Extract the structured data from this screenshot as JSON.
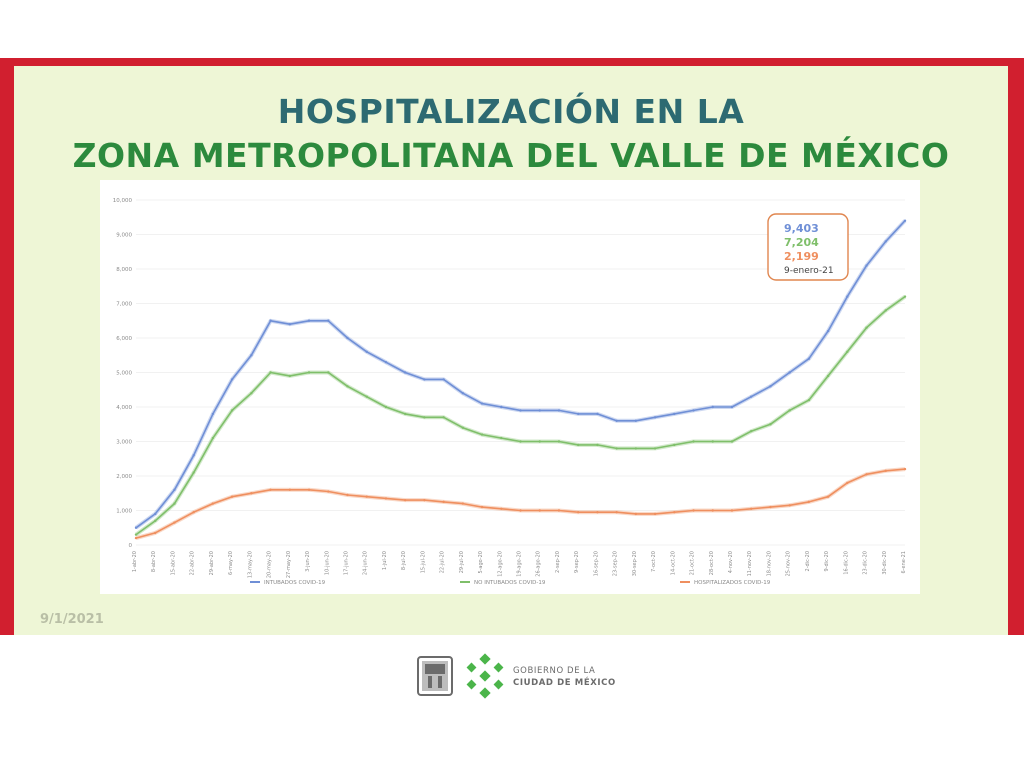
{
  "title": {
    "line1": "HOSPITALIZACIÓN EN LA",
    "line2": "ZONA METROPOLITANA DEL VALLE DE MÉXICO"
  },
  "date": "9/1/2021",
  "org": {
    "line1": "GOBIERNO DE LA",
    "line2": "CIUDAD DE MÉXICO"
  },
  "colors": {
    "frame": "#d11f2f",
    "panel": "#eef6d6",
    "title_top": "#2d6a72",
    "title_bottom": "#2c8a3d",
    "intubados": "#6f8fd6",
    "no_intubados": "#7fbf6a",
    "hospitalizados": "#ef8f5f"
  },
  "chart_data": {
    "type": "line",
    "ylim": [
      0,
      10000
    ],
    "y_ticks": [
      "0",
      "1,000",
      "2,000",
      "3,000",
      "4,000",
      "5,000",
      "6,000",
      "7,000",
      "8,000",
      "9,000",
      "10,000"
    ],
    "x_tick_labels": [
      "1-abr-20",
      "8-abr-20",
      "15-abr-20",
      "22-abr-20",
      "29-abr-20",
      "6-may-20",
      "13-may-20",
      "20-may-20",
      "27-may-20",
      "3-jun-20",
      "10-jun-20",
      "17-jun-20",
      "24-jun-20",
      "1-jul-20",
      "8-jul-20",
      "15-jul-20",
      "22-jul-20",
      "29-jul-20",
      "5-ago-20",
      "12-ago-20",
      "19-ago-20",
      "26-ago-20",
      "2-sep-20",
      "9-sep-20",
      "16-sep-20",
      "23-sep-20",
      "30-sep-20",
      "7-oct-20",
      "14-oct-20",
      "21-oct-20",
      "28-oct-20",
      "4-nov-20",
      "11-nov-20",
      "18-nov-20",
      "25-nov-20",
      "2-dic-20",
      "9-dic-20",
      "16-dic-20",
      "23-dic-20",
      "30-dic-20",
      "6-ene-21"
    ],
    "legend": [
      "INTUBADOS COVID-19",
      "NO INTUBADOS COVID-19",
      "HOSPITALIZADOS COVID-19"
    ],
    "series": [
      {
        "name": "HOSPITALIZADOS COVID-19",
        "color_key": "intubados",
        "values": [
          500,
          900,
          1600,
          2600,
          3800,
          4800,
          5500,
          6500,
          6400,
          6500,
          6500,
          6000,
          5600,
          5300,
          5000,
          4800,
          4800,
          4400,
          4100,
          4000,
          3900,
          3900,
          3900,
          3800,
          3800,
          3600,
          3600,
          3700,
          3800,
          3900,
          4000,
          4000,
          4300,
          4600,
          5000,
          5400,
          6200,
          7200,
          8100,
          8800,
          9400
        ]
      },
      {
        "name": "NO INTUBADOS COVID-19",
        "color_key": "no_intubados",
        "values": [
          300,
          700,
          1200,
          2100,
          3100,
          3900,
          4400,
          5000,
          4900,
          5000,
          5000,
          4600,
          4300,
          4000,
          3800,
          3700,
          3700,
          3400,
          3200,
          3100,
          3000,
          3000,
          3000,
          2900,
          2900,
          2800,
          2800,
          2800,
          2900,
          3000,
          3000,
          3000,
          3300,
          3500,
          3900,
          4200,
          4900,
          5600,
          6300,
          6800,
          7200
        ]
      },
      {
        "name": "INTUBADOS COVID-19",
        "color_key": "hospitalizados",
        "values": [
          200,
          350,
          650,
          950,
          1200,
          1400,
          1500,
          1600,
          1600,
          1600,
          1550,
          1450,
          1400,
          1350,
          1300,
          1300,
          1250,
          1200,
          1100,
          1050,
          1000,
          1000,
          1000,
          950,
          950,
          950,
          900,
          900,
          950,
          1000,
          1000,
          1000,
          1050,
          1100,
          1150,
          1250,
          1400,
          1800,
          2050,
          2150,
          2200
        ]
      }
    ],
    "annotation": {
      "values": [
        "9,403",
        "7,204",
        "2,199"
      ],
      "date": "9-enero-21"
    }
  }
}
